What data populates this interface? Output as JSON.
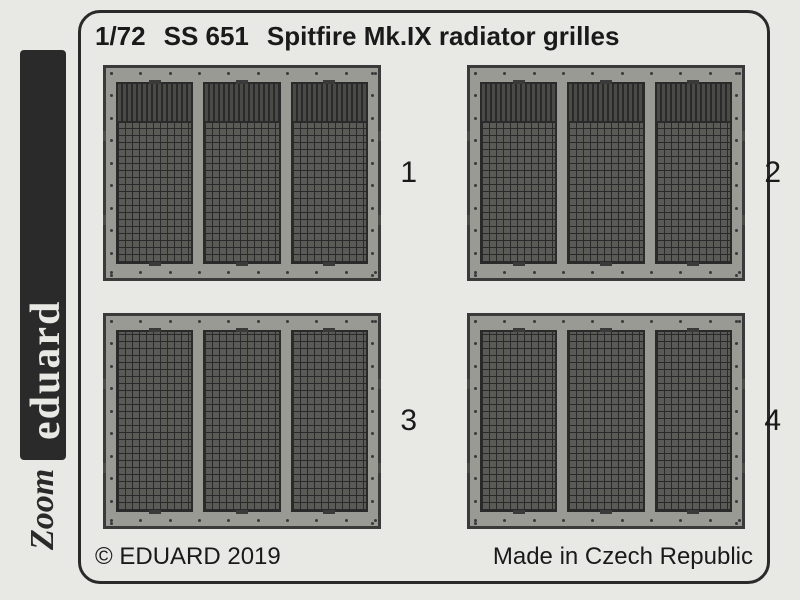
{
  "header": {
    "scale": "1/72",
    "code": "SS 651",
    "title": "Spitfire Mk.IX radiator grilles"
  },
  "footer": {
    "copyright": "© EDUARD 2019",
    "origin": "Made in Czech Republic"
  },
  "brand": {
    "name": "eduard",
    "line": "Zoom"
  },
  "groups": [
    {
      "id": 1,
      "label": "1",
      "variant": "split"
    },
    {
      "id": 2,
      "label": "2",
      "variant": "split"
    },
    {
      "id": 3,
      "label": "3",
      "variant": "full"
    },
    {
      "id": 4,
      "label": "4",
      "variant": "full"
    }
  ],
  "styling": {
    "panel_count_per_group": 3,
    "frame_color": "#3a3a3a",
    "frame_fill": "#9a9a94",
    "mesh_light": "#5a5a56",
    "mesh_dark": "#2a2a2a",
    "louver_color": "#4a4a46",
    "background": "#e8e8e4",
    "text_color": "#1a1a1a",
    "header_fontsize": 26,
    "footer_fontsize": 24,
    "label_fontsize": 30,
    "sheet_border_radius": 22,
    "rivets_per_side": 10
  }
}
